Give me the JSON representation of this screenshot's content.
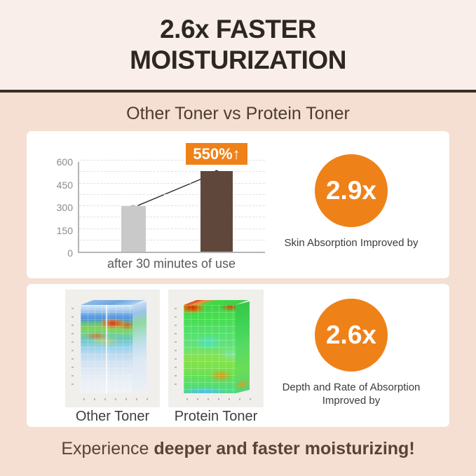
{
  "header": {
    "title_line1": "2.6x FASTER",
    "title_line2": "MOISTURIZATION",
    "subtitle": "Other Toner vs Protein Toner"
  },
  "chart_data": {
    "type": "bar",
    "title": "",
    "categories": [
      "Other Toner",
      "Protein Toner"
    ],
    "values": [
      300,
      530
    ],
    "ylim": [
      0,
      600
    ],
    "yticks": [
      600,
      450,
      300,
      150,
      0
    ],
    "gridline_step": 75,
    "grid_style": "horizontal dashed",
    "legend": "none",
    "xlabel": "after 30 minutes of use",
    "ylabel": "",
    "annotation_badge": "550%↑",
    "annotation_note": "black line with dot markers connects the two bar tops",
    "bar_colors": [
      "#C9C9C9",
      "#5F483B"
    ]
  },
  "stat_absorption": {
    "value": "2.9x",
    "caption": "Skin Absorption Improved by"
  },
  "comparison": {
    "left_label": "Other Toner",
    "right_label": "Protein Toner"
  },
  "stat_depth": {
    "value": "2.6x",
    "caption_line1": "Depth and Rate of Absorption",
    "caption_line2": "Improved by"
  },
  "footer": {
    "lead": "Experience ",
    "emphasis": "deeper and faster moisturizing!"
  },
  "colors": {
    "accent_orange": "#EF8119",
    "background_top": "#F9EEEA",
    "background_main": "#F4DFD2",
    "divider": "#3A2E27",
    "bar_gray": "#C9C9C9",
    "bar_brown": "#5F483B"
  }
}
